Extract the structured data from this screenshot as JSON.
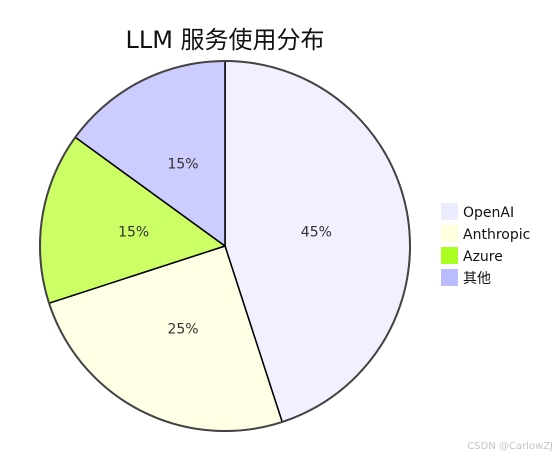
{
  "chart_data": {
    "type": "pie",
    "title": "LLM 服务使用分布",
    "slices": [
      {
        "label": "OpenAI",
        "value": 45,
        "display": "45%",
        "color": "#f0f0ff"
      },
      {
        "label": "Anthropic",
        "value": 25,
        "display": "25%",
        "color": "#ffffe5"
      },
      {
        "label": "Azure",
        "value": 15,
        "display": "15%",
        "color": "#ccff66"
      },
      {
        "label": "其他",
        "value": 15,
        "display": "15%",
        "color": "#ccccff"
      }
    ],
    "legend": {
      "placement": "right",
      "entries": [
        {
          "label": "OpenAI",
          "color": "#ececff"
        },
        {
          "label": "Anthropic",
          "color": "#ffffe0"
        },
        {
          "label": "Azure",
          "color": "#aaff22"
        },
        {
          "label": "其他",
          "color": "#bbbbff"
        }
      ]
    }
  },
  "watermark": "CSDN @CarlowZJ"
}
